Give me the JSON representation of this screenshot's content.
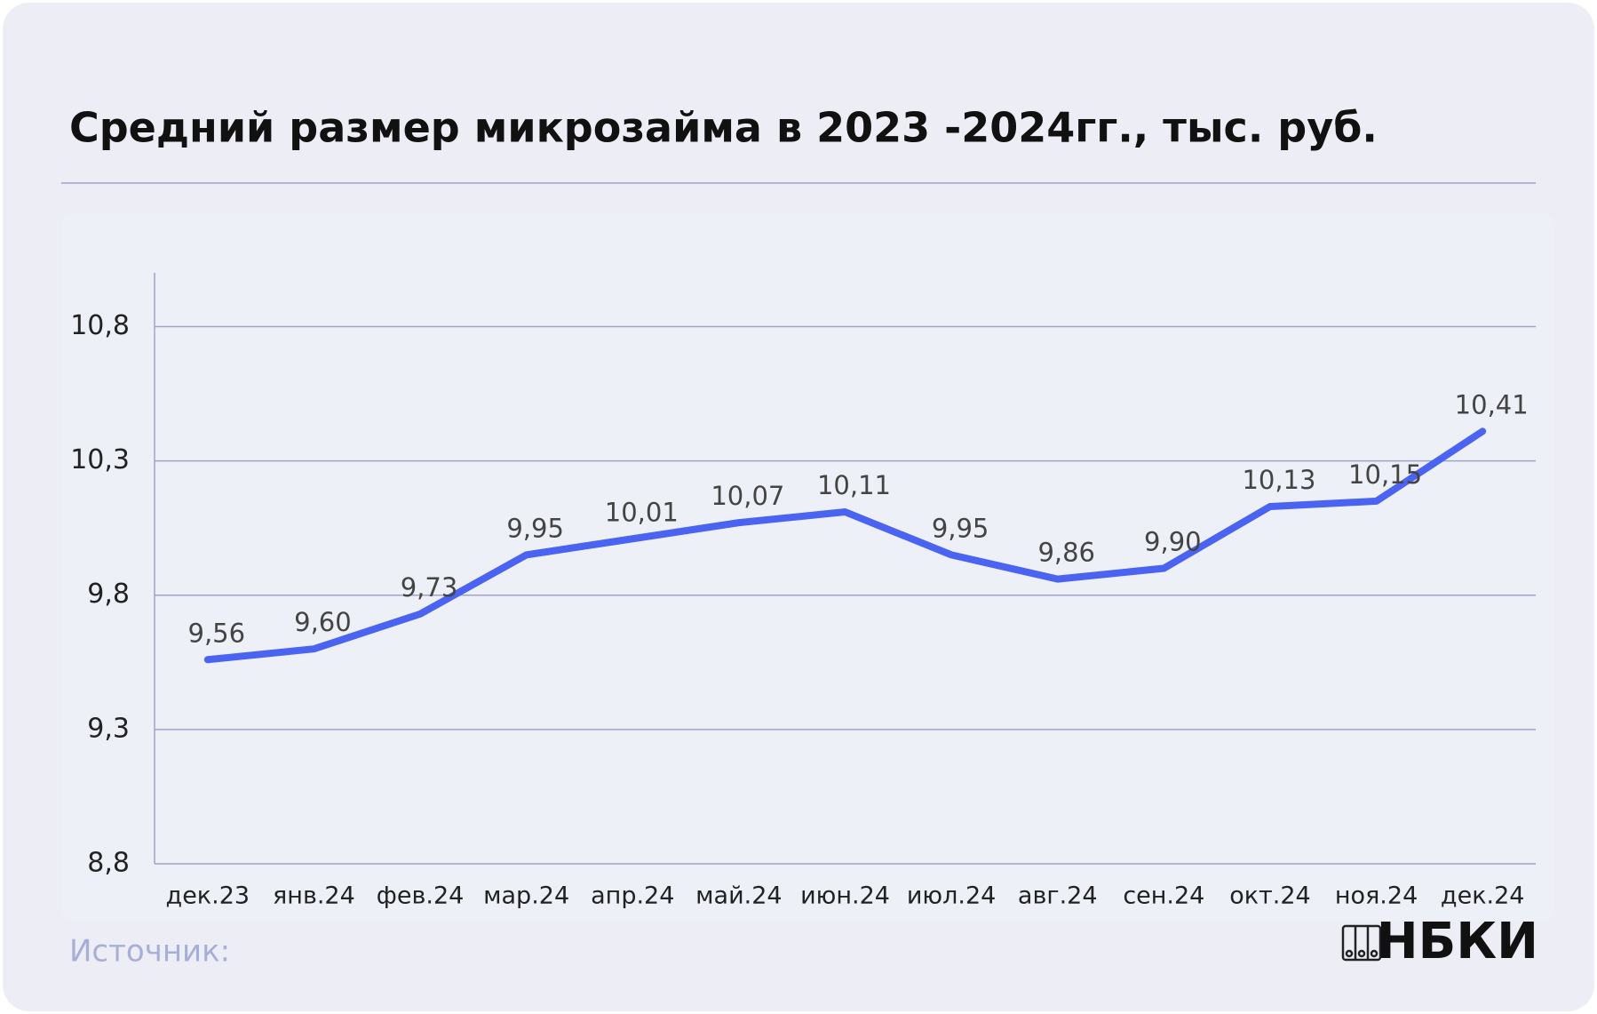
{
  "chart_data": {
    "type": "line",
    "title": "Средний размер микрозайма в 2023 -2024гг., тыс. руб.",
    "categories": [
      "дек.23",
      "янв.24",
      "фев.24",
      "мар.24",
      "апр.24",
      "май.24",
      "июн.24",
      "июл.24",
      "авг.24",
      "сен.24",
      "окт.24",
      "ноя.24",
      "дек.24"
    ],
    "series": [
      {
        "name": "Средний размер микрозайма",
        "color": "#4a63f0",
        "values": [
          9.56,
          9.6,
          9.73,
          9.95,
          10.01,
          10.07,
          10.11,
          9.95,
          9.86,
          9.9,
          10.13,
          10.15,
          10.41
        ],
        "value_labels": [
          "9,56",
          "9,60",
          "9,73",
          "9,95",
          "10,01",
          "10,07",
          "10,11",
          "9,95",
          "9,86",
          "9,90",
          "10,13",
          "10,15",
          "10,41"
        ]
      }
    ],
    "ylim": [
      8.8,
      11.0
    ],
    "yticks": [
      {
        "value": 8.8,
        "label": "8,8"
      },
      {
        "value": 9.3,
        "label": "9,3"
      },
      {
        "value": 9.8,
        "label": "9,8"
      },
      {
        "value": 10.3,
        "label": "10,3"
      },
      {
        "value": 10.8,
        "label": "10,8"
      }
    ],
    "grid": true
  },
  "footer": {
    "source": "Источник:",
    "logo": "НБКИ"
  }
}
